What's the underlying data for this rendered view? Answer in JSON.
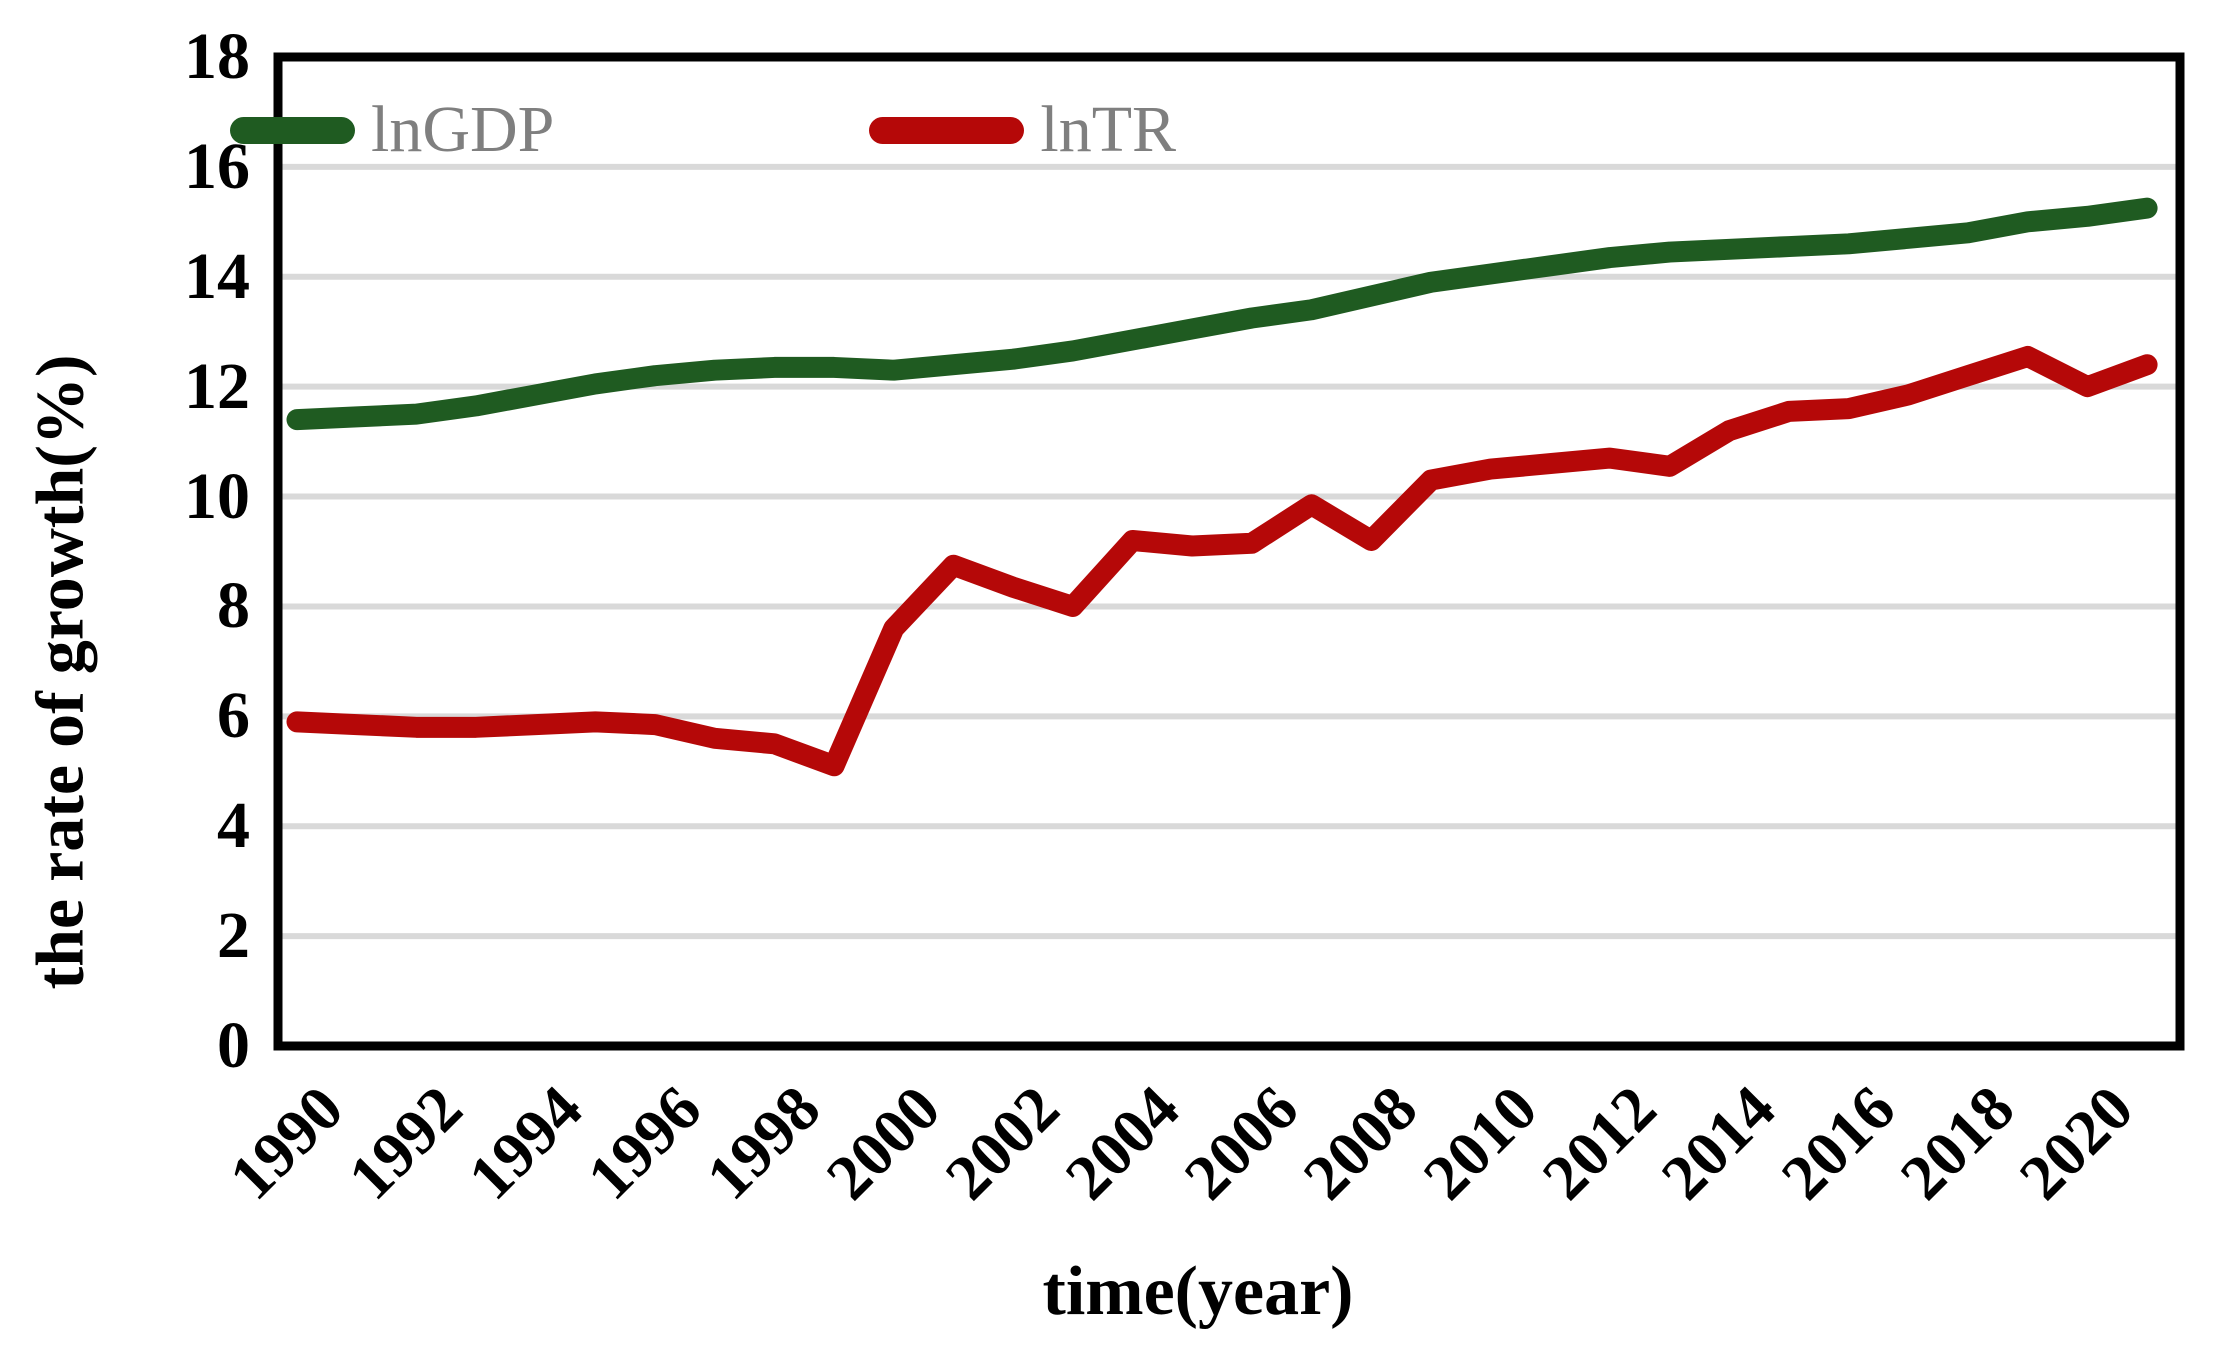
{
  "chart_data": {
    "type": "line",
    "title": "",
    "xlabel": "time(year)",
    "ylabel": "the rate of growth(%)",
    "x": [
      1990,
      1991,
      1992,
      1993,
      1994,
      1995,
      1996,
      1997,
      1998,
      1999,
      2000,
      2001,
      2002,
      2003,
      2004,
      2005,
      2006,
      2007,
      2008,
      2009,
      2010,
      2011,
      2012,
      2013,
      2014,
      2015,
      2016,
      2017,
      2018,
      2019,
      2020,
      2021
    ],
    "series": [
      {
        "name": "lnGDP",
        "color": "#1f5b21",
        "values": [
          11.4,
          11.45,
          11.5,
          11.65,
          11.85,
          12.05,
          12.2,
          12.3,
          12.35,
          12.35,
          12.3,
          12.4,
          12.5,
          12.65,
          12.85,
          13.05,
          13.25,
          13.4,
          13.65,
          13.9,
          14.05,
          14.2,
          14.35,
          14.45,
          14.5,
          14.55,
          14.6,
          14.7,
          14.8,
          15.0,
          15.1,
          15.25
        ]
      },
      {
        "name": "lnTR",
        "color": "#b50808",
        "values": [
          5.9,
          5.85,
          5.8,
          5.8,
          5.85,
          5.9,
          5.85,
          5.6,
          5.5,
          5.1,
          7.6,
          8.75,
          8.35,
          8.0,
          9.2,
          9.1,
          9.15,
          9.85,
          9.2,
          10.3,
          10.5,
          10.6,
          10.7,
          10.55,
          11.2,
          11.55,
          11.6,
          11.85,
          12.2,
          12.55,
          12.0,
          12.4
        ]
      }
    ],
    "ylim": [
      0,
      18
    ],
    "ytick_labels": [
      "0",
      "2",
      "4",
      "6",
      "8",
      "10",
      "12",
      "14",
      "16",
      "18"
    ],
    "xtick_labels": [
      "1990",
      "1992",
      "1994",
      "1996",
      "1998",
      "2000",
      "2002",
      "2004",
      "2006",
      "2008",
      "2010",
      "2012",
      "2014",
      "2016",
      "2018",
      "2020"
    ],
    "grid": "horizontal",
    "gridline_color": "#d9d9d9",
    "border_color": "#000000",
    "legend_position": "top-inside-left",
    "legend_text_color": "#7f7f7f"
  }
}
